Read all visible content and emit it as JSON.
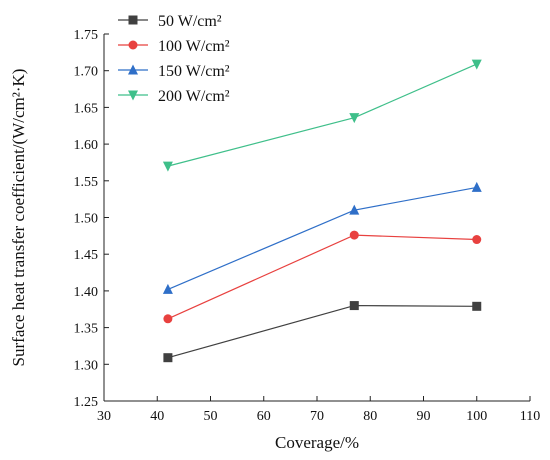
{
  "chart_data": {
    "type": "line",
    "xlabel": "Coverage/%",
    "ylabel": "Surface heat transfer coefficient/(W/cm²·K)",
    "xlim": [
      30,
      110
    ],
    "ylim": [
      1.25,
      1.75
    ],
    "xticks": [
      "30",
      "40",
      "50",
      "60",
      "70",
      "80",
      "90",
      "100",
      "110"
    ],
    "yticks": [
      "1.25",
      "1.30",
      "1.35",
      "1.40",
      "1.45",
      "1.50",
      "1.55",
      "1.60",
      "1.65",
      "1.70",
      "1.75"
    ],
    "grid": false,
    "legend_position": "top-left",
    "x": [
      42,
      77,
      100
    ],
    "series": [
      {
        "name": "50 W/cm²",
        "values": [
          1.309,
          1.38,
          1.379
        ],
        "color": "#404040",
        "marker": "square"
      },
      {
        "name": "100 W/cm²",
        "values": [
          1.362,
          1.476,
          1.47
        ],
        "color": "#e8413f",
        "marker": "circle"
      },
      {
        "name": "150 W/cm²",
        "values": [
          1.402,
          1.51,
          1.541
        ],
        "color": "#2f6fc8",
        "marker": "triangle-up"
      },
      {
        "name": "200 W/cm²",
        "values": [
          1.57,
          1.636,
          1.709
        ],
        "color": "#3fbf8a",
        "marker": "triangle-down"
      }
    ]
  }
}
